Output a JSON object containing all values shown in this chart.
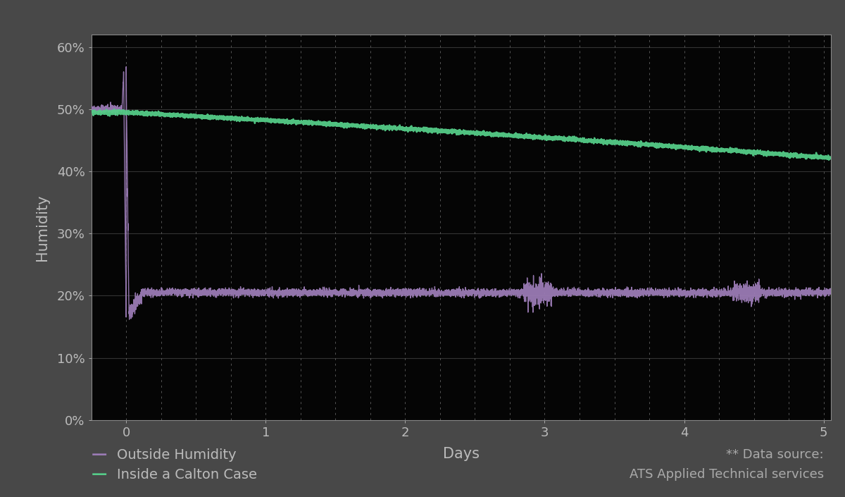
{
  "title": "",
  "xlabel": "Days",
  "ylabel": "Humidity",
  "figure_bg_color": "#484848",
  "plot_bg_color": "#050505",
  "text_color": "#bbbbbb",
  "outside_color": "#9b7bb5",
  "inside_color": "#55cc88",
  "legend_outside": "Outside Humidity",
  "legend_inside": "Inside a Calton Case",
  "annotation_line1": "** Data source:",
  "annotation_line2": "ATS Applied Technical services",
  "annotation_color": "#aaaaaa",
  "dashed_vgrid_color": "#555555",
  "solid_hgrid_color": "#333333",
  "spine_color": "#888888",
  "xlim": [
    -0.25,
    5.05
  ],
  "ylim": [
    0.0,
    0.62
  ],
  "yticks": [
    0.0,
    0.1,
    0.2,
    0.3,
    0.4,
    0.5,
    0.6
  ],
  "ytick_labels": [
    "0%",
    "10%",
    "20%",
    "30%",
    "40%",
    "50%",
    "60%"
  ],
  "xticks": [
    0,
    1,
    2,
    3,
    4,
    5
  ],
  "xtick_labels": [
    "0",
    "1",
    "2",
    "3",
    "4",
    "5"
  ],
  "vgrid_positions": [
    0.0,
    0.25,
    0.5,
    0.75,
    1.0,
    1.25,
    1.5,
    1.75,
    2.0,
    2.25,
    2.5,
    2.75,
    3.0,
    3.25,
    3.5,
    3.75,
    4.0,
    4.25,
    4.5,
    4.75,
    5.0
  ]
}
